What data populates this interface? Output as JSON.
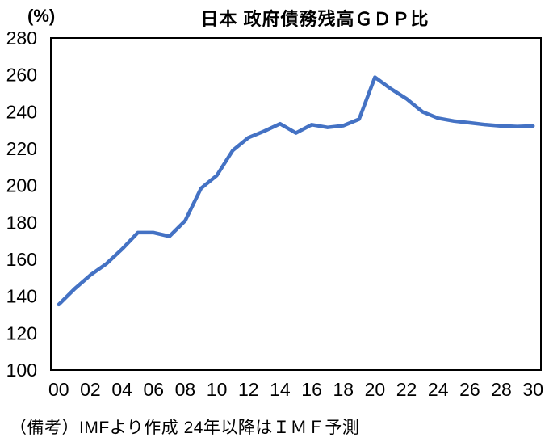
{
  "chart_data": {
    "type": "line",
    "title": "日本 政府債務残高ＧＤＰ比",
    "unit_label": "(%)",
    "note": "（備考）IMFより作成 24年以降はＩＭＦ予測",
    "categories": [
      "00",
      "01",
      "02",
      "03",
      "04",
      "05",
      "06",
      "07",
      "08",
      "09",
      "10",
      "11",
      "12",
      "13",
      "14",
      "15",
      "16",
      "17",
      "18",
      "19",
      "20",
      "21",
      "22",
      "23",
      "24",
      "25",
      "26",
      "27",
      "28",
      "29",
      "30"
    ],
    "series": [
      {
        "name": "政府債務残高GDP比",
        "values": [
          135.5,
          144.0,
          151.5,
          157.5,
          165.5,
          174.5,
          174.5,
          172.5,
          181.0,
          198.5,
          205.5,
          219.0,
          226.0,
          229.5,
          233.5,
          228.5,
          233.0,
          231.5,
          232.5,
          236.0,
          258.7,
          252.5,
          247.0,
          240.0,
          236.5,
          235.0,
          234.0,
          233.0,
          232.3,
          232.0,
          232.3
        ]
      }
    ],
    "ylim": [
      100,
      280
    ],
    "ytick_step": 20,
    "x_tick_interval": 2,
    "xlabel": "",
    "ylabel": "(%)",
    "grid": "off",
    "legend": "none",
    "line_color": "#4472C4",
    "axis_color": "#000000"
  }
}
